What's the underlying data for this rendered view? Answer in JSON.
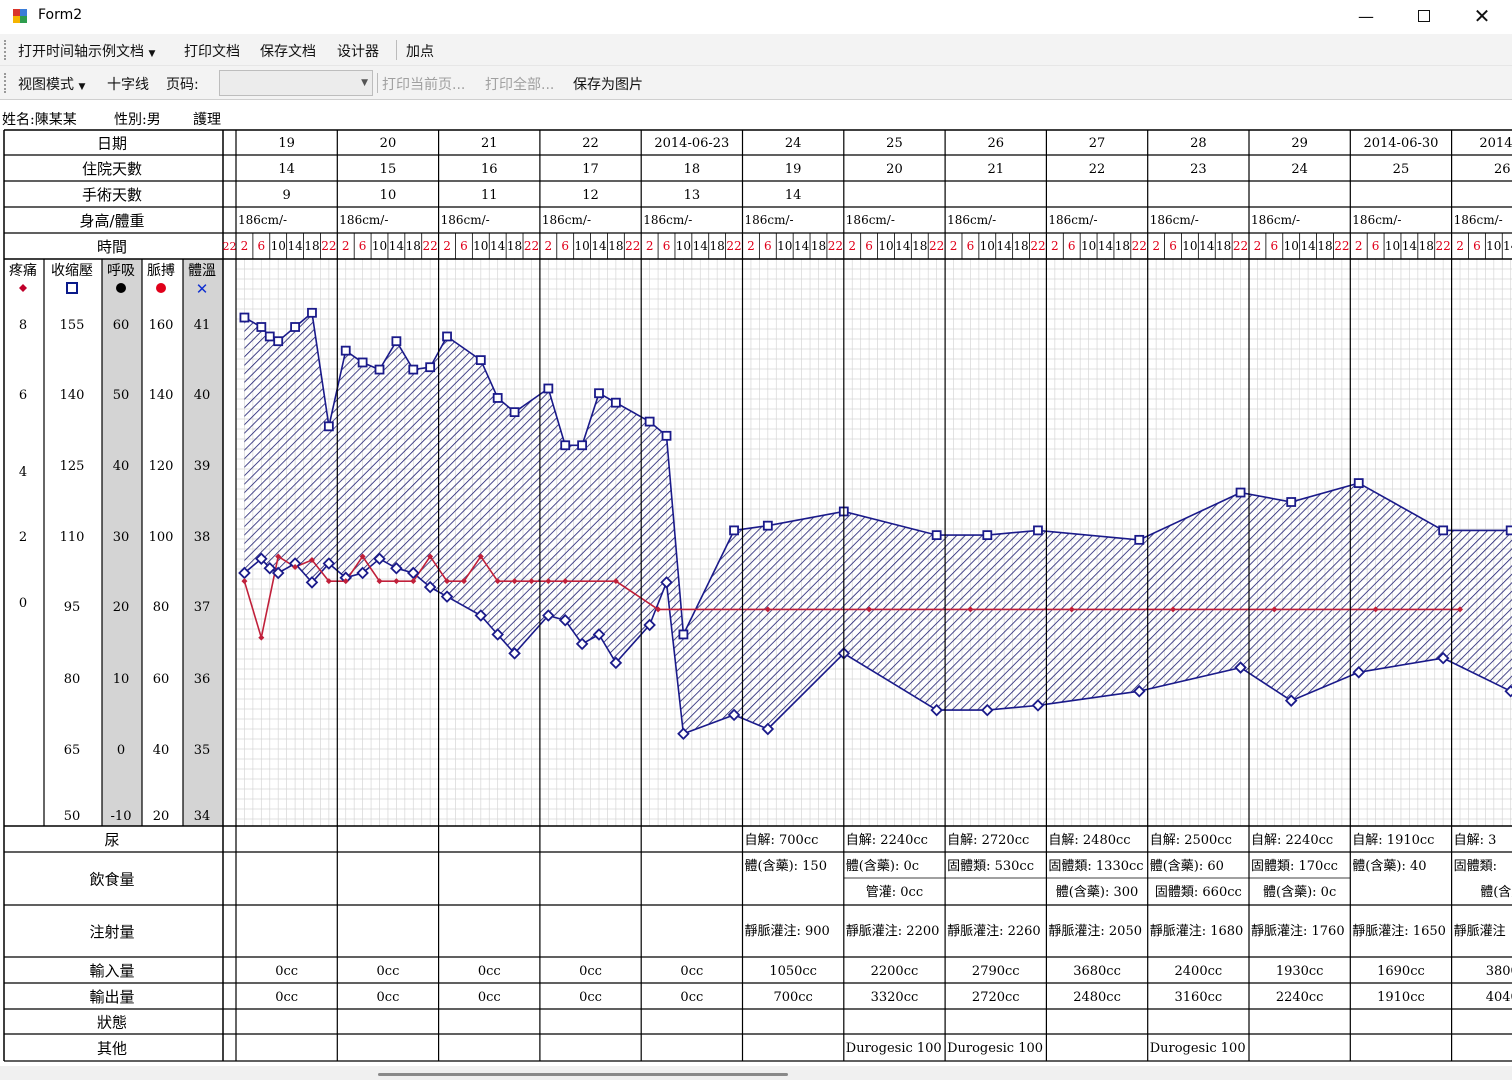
{
  "window": {
    "title": "Form2",
    "minimize_icon": "minimize-icon",
    "maximize_icon": "maximize-icon",
    "close_icon": "close-icon"
  },
  "toolbar1": {
    "open_example": "打开时间轴示例文档",
    "print_doc": "打印文档",
    "save_doc": "保存文档",
    "designer": "设计器",
    "add_point": "加点"
  },
  "toolbar2": {
    "view_mode": "视图模式",
    "crosshair": "十字线",
    "page_label": "页码:",
    "page_value": "",
    "print_current": "打印当前页...",
    "print_all": "打印全部...",
    "save_image": "保存为图片"
  },
  "patient": {
    "name": "姓名:陳某某",
    "sex": "性別:男",
    "unit": "護理"
  },
  "row_labels": {
    "date": "日期",
    "hospital_days": "住院天數",
    "surgery_days": "手術天數",
    "height_weight": "身高/體重",
    "time": "時間",
    "urine": "尿",
    "food": "飲食量",
    "injection": "注射量",
    "input": "輸入量",
    "output": "輸出量",
    "status": "狀態",
    "other": "其他"
  },
  "axes": [
    {
      "label": "疼痛",
      "symbol_color": "#c0002a",
      "ticks": [
        "8",
        "6",
        "4",
        "2",
        "0"
      ]
    },
    {
      "label": "收缩壓",
      "symbol_color": "#0a1a8a",
      "ticks": [
        "155",
        "140",
        "125",
        "110",
        "95",
        "80",
        "65",
        "50"
      ]
    },
    {
      "label": "呼吸",
      "symbol_color": "#000000",
      "ticks": [
        "60",
        "50",
        "40",
        "30",
        "20",
        "10",
        "0",
        "-10"
      ]
    },
    {
      "label": "脈搏",
      "symbol_color": "#e0001a",
      "ticks": [
        "160",
        "140",
        "120",
        "100",
        "80",
        "60",
        "40",
        "20"
      ]
    },
    {
      "label": "體溫",
      "symbol_color": "#1030d0",
      "ticks": [
        "41",
        "40",
        "39",
        "38",
        "37",
        "36",
        "35",
        "34"
      ]
    }
  ],
  "days": [
    {
      "date": "19",
      "hosp": "14",
      "surg": "9",
      "hw": "186cm/-",
      "urine": "",
      "food1": "",
      "food2": "",
      "inj": "",
      "input": "0cc",
      "output": "0cc",
      "other": ""
    },
    {
      "date": "20",
      "hosp": "15",
      "surg": "10",
      "hw": "186cm/-",
      "urine": "",
      "food1": "",
      "food2": "",
      "inj": "",
      "input": "0cc",
      "output": "0cc",
      "other": ""
    },
    {
      "date": "21",
      "hosp": "16",
      "surg": "11",
      "hw": "186cm/-",
      "urine": "",
      "food1": "",
      "food2": "",
      "inj": "",
      "input": "0cc",
      "output": "0cc",
      "other": ""
    },
    {
      "date": "22",
      "hosp": "17",
      "surg": "12",
      "hw": "186cm/-",
      "urine": "",
      "food1": "",
      "food2": "",
      "inj": "",
      "input": "0cc",
      "output": "0cc",
      "other": ""
    },
    {
      "date": "2014-06-23",
      "hosp": "18",
      "surg": "13",
      "hw": "186cm/-",
      "urine": "",
      "food1": "",
      "food2": "",
      "inj": "",
      "input": "0cc",
      "output": "0cc",
      "other": ""
    },
    {
      "date": "24",
      "hosp": "19",
      "surg": "14",
      "hw": "186cm/-",
      "urine": "自解: 700cc",
      "food1": "體(含藥): 150",
      "food2": "",
      "inj": "靜脈灌注: 900",
      "input": "1050cc",
      "output": "700cc",
      "other": ""
    },
    {
      "date": "25",
      "hosp": "20",
      "surg": "",
      "hw": "186cm/-",
      "urine": "自解: 2240cc",
      "food1": "體(含藥): 0c",
      "food2": "管灌: 0cc",
      "inj": "靜脈灌注: 2200",
      "input": "2200cc",
      "output": "3320cc",
      "other": "Durogesic 100"
    },
    {
      "date": "26",
      "hosp": "21",
      "surg": "",
      "hw": "186cm/-",
      "urine": "自解: 2720cc",
      "food1": "固體類: 530cc",
      "food2": "",
      "inj": "靜脈灌注: 2260",
      "input": "2790cc",
      "output": "2720cc",
      "other": "Durogesic 100"
    },
    {
      "date": "27",
      "hosp": "22",
      "surg": "",
      "hw": "186cm/-",
      "urine": "自解: 2480cc",
      "food1": "固體類: 1330cc",
      "food2": "體(含藥): 300",
      "inj": "靜脈灌注: 2050",
      "input": "3680cc",
      "output": "2480cc",
      "other": ""
    },
    {
      "date": "28",
      "hosp": "23",
      "surg": "",
      "hw": "186cm/-",
      "urine": "自解: 2500cc",
      "food1": "體(含藥): 60",
      "food2": "固體類: 660cc",
      "inj": "靜脈灌注: 1680",
      "input": "2400cc",
      "output": "3160cc",
      "other": "Durogesic 100"
    },
    {
      "date": "29",
      "hosp": "24",
      "surg": "",
      "hw": "186cm/-",
      "urine": "自解: 2240cc",
      "food1": "固體類: 170cc",
      "food2": "體(含藥): 0c",
      "inj": "靜脈灌注: 1760",
      "input": "1930cc",
      "output": "2240cc",
      "other": ""
    },
    {
      "date": "2014-06-30",
      "hosp": "25",
      "surg": "",
      "hw": "186cm/-",
      "urine": "自解: 1910cc",
      "food1": "體(含藥): 40",
      "food2": "",
      "inj": "靜脈灌注: 1650",
      "input": "1690cc",
      "output": "1910cc",
      "other": ""
    },
    {
      "date": "2014-0",
      "hosp": "26",
      "surg": "",
      "hw": "186cm/-",
      "urine": "自解: 3",
      "food1": "固體類:",
      "food2": "體(含藥",
      "inj": "靜脈灌注",
      "input": "3800",
      "output": "4040",
      "other": ""
    }
  ],
  "time_slots": [
    "2",
    "6",
    "10",
    "14",
    "18",
    "22"
  ],
  "chart_data": {
    "type": "line",
    "x_unit": "hours since 2014-06-19 00:00",
    "series": [
      {
        "name": "收缩壓",
        "axis": "收缩壓",
        "x": [
          2,
          6,
          8,
          10,
          14,
          18,
          22,
          26,
          30,
          34,
          38,
          42,
          46,
          50,
          58,
          62,
          66,
          74,
          78,
          82,
          86,
          90,
          98,
          102,
          106,
          118,
          126,
          144,
          166,
          178,
          190,
          214,
          238,
          250,
          266,
          286,
          302,
          318,
          334,
          346,
          362
        ],
        "values": [
          157,
          155,
          153,
          152,
          155,
          158,
          134,
          150,
          147.5,
          146,
          152,
          146,
          146.5,
          153,
          148,
          140,
          137,
          142,
          130,
          130,
          141,
          139,
          135,
          132,
          90,
          112,
          113,
          116,
          111,
          111,
          112,
          110,
          120,
          118,
          122,
          112,
          112,
          106,
          105,
          106,
          105
        ]
      },
      {
        "name": "舒張壓",
        "axis": "收缩壓",
        "x": [
          2,
          6,
          8,
          10,
          14,
          18,
          22,
          26,
          30,
          34,
          38,
          42,
          46,
          50,
          58,
          62,
          66,
          74,
          78,
          82,
          86,
          90,
          98,
          102,
          106,
          118,
          126,
          144,
          166,
          178,
          190,
          214,
          238,
          250,
          266,
          286,
          302,
          318,
          334,
          346,
          362
        ],
        "values": [
          103,
          106,
          104,
          103,
          105,
          101,
          105,
          102,
          103,
          106,
          104,
          103,
          100,
          98,
          94,
          90,
          86,
          94,
          93,
          88,
          90,
          84,
          92,
          101,
          69,
          73,
          70,
          86,
          74,
          74,
          75,
          78,
          83,
          76,
          82,
          85,
          78,
          67,
          67,
          76,
          64
        ]
      },
      {
        "name": "脈搏",
        "axis": "脈搏",
        "x": [
          2,
          6,
          10,
          14,
          18,
          22,
          26,
          30,
          34,
          38,
          42,
          46,
          50,
          54,
          58,
          62,
          66,
          70,
          74,
          78,
          90,
          100,
          126,
          150,
          174,
          198,
          222,
          246,
          270,
          290
        ],
        "values": [
          88,
          72,
          95,
          92,
          94,
          88,
          88,
          95,
          88,
          88,
          88,
          95,
          88,
          88,
          95,
          88,
          88,
          88,
          88,
          88,
          88,
          80,
          80,
          80,
          80,
          80,
          80,
          80,
          80,
          80
        ]
      }
    ]
  }
}
